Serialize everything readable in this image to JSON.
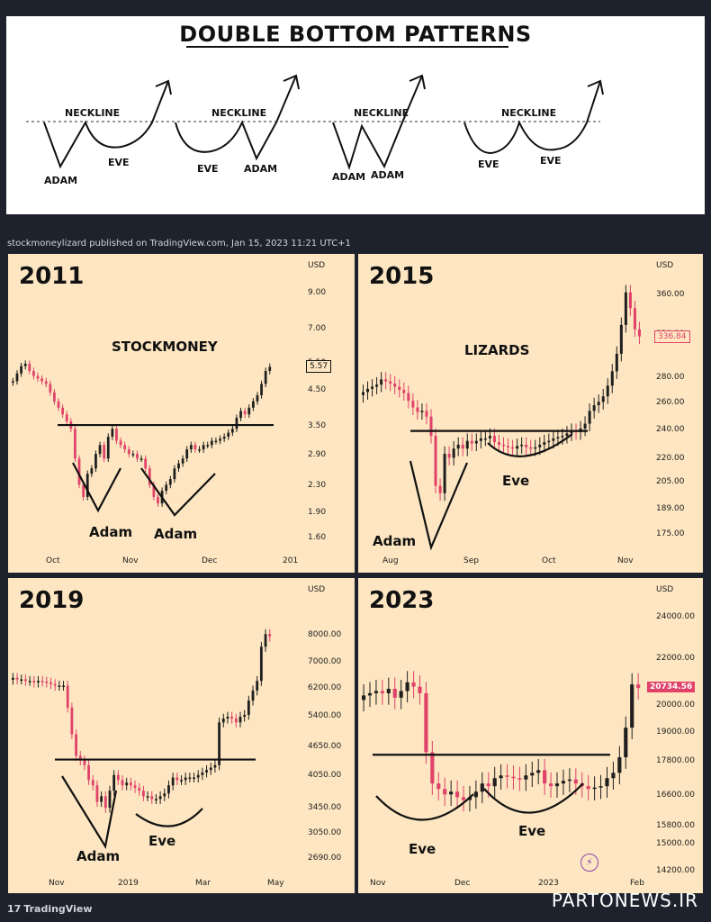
{
  "header": {
    "title": "DOUBLE BOTTOM PATTERNS",
    "patterns": [
      {
        "neckline": "NECKLINE",
        "left": "ADAM",
        "right": "EVE"
      },
      {
        "neckline": "NECKLINE",
        "left": "EVE",
        "right": "ADAM"
      },
      {
        "neckline": "NECKLINE",
        "left": "ADAM",
        "right": "ADAM"
      },
      {
        "neckline": "NECKLINE",
        "left": "EVE",
        "right": "EVE"
      }
    ]
  },
  "publish": {
    "text": "stockmoneylizard published on TradingView.com, Jan 15, 2023 11:21 UTC+1"
  },
  "footer": {
    "logo": "TradingView",
    "logo_mark": "17",
    "watermark": "PARTONEWS.IR"
  },
  "colors": {
    "up": "#1f1f1f",
    "down": "#e0426a",
    "panel": "#fde6c1",
    "background": "#1e222d"
  },
  "chart_data": [
    {
      "type": "candlestick",
      "year": "2011",
      "brand": "STOCKMONEY",
      "currency": "USD",
      "scale": "log",
      "y_ticks": [
        "9.00",
        "7.00",
        "5.50",
        "4.50",
        "3.50",
        "2.90",
        "2.30",
        "1.90",
        "1.60"
      ],
      "x_ticks": [
        "Oct",
        "Nov",
        "Dec",
        "201"
      ],
      "last_price": "5.57",
      "annotations": [
        "Adam",
        "Adam"
      ],
      "neckline": 3.6,
      "ylim": [
        1.4,
        11.5
      ],
      "closes": [
        5.0,
        5.3,
        5.6,
        5.7,
        5.4,
        5.2,
        5.1,
        5.0,
        4.9,
        4.6,
        4.3,
        4.1,
        3.9,
        3.7,
        3.5,
        2.8,
        2.3,
        2.1,
        2.5,
        2.6,
        2.9,
        3.1,
        2.8,
        3.3,
        3.5,
        3.2,
        3.1,
        3.0,
        2.9,
        2.9,
        2.8,
        2.8,
        2.6,
        2.3,
        2.1,
        2.0,
        2.2,
        2.3,
        2.4,
        2.6,
        2.7,
        2.8,
        3.0,
        3.1,
        3.0,
        3.0,
        3.1,
        3.1,
        3.2,
        3.2,
        3.25,
        3.3,
        3.4,
        3.5,
        3.8,
        4.0,
        3.9,
        4.1,
        4.3,
        4.5,
        4.9,
        5.4,
        5.57
      ]
    },
    {
      "type": "candlestick",
      "year": "2015",
      "brand": "LIZARDS",
      "currency": "USD",
      "scale": "log",
      "y_ticks": [
        "360.00",
        "320.00",
        "280.00",
        "260.00",
        "240.00",
        "220.00",
        "205.00",
        "189.00",
        "175.00"
      ],
      "x_ticks": [
        "Aug",
        "Sep",
        "Oct",
        "Nov"
      ],
      "last_price": "336.84",
      "annotations": [
        "Adam",
        "Eve"
      ],
      "neckline": 246,
      "ylim": [
        165,
        420
      ],
      "closes": [
        280,
        283,
        285,
        287,
        292,
        290,
        288,
        285,
        282,
        279,
        272,
        266,
        262,
        263,
        258,
        242,
        205,
        200,
        228,
        225,
        232,
        235,
        232,
        238,
        236,
        238,
        240,
        240,
        242,
        237,
        235,
        234,
        233,
        232,
        234,
        235,
        233,
        232,
        233,
        235,
        237,
        238,
        240,
        241,
        242,
        244,
        246,
        245,
        248,
        252,
        263,
        268,
        271,
        276,
        286,
        300,
        318,
        350,
        390,
        370,
        345,
        336.84
      ]
    },
    {
      "type": "candlestick",
      "year": "2019",
      "brand": "",
      "currency": "USD",
      "scale": "log",
      "y_ticks": [
        "8000.00",
        "7000.00",
        "6200.00",
        "5400.00",
        "4650.00",
        "4050.00",
        "3450.00",
        "3050.00",
        "2690.00"
      ],
      "x_ticks": [
        "Nov",
        "2019",
        "Mar",
        "May"
      ],
      "last_price": "",
      "annotations": [
        "Adam",
        "Eve"
      ],
      "neckline": 4220,
      "ylim": [
        2450,
        9800
      ],
      "closes": [
        6400,
        6350,
        6350,
        6300,
        6300,
        6250,
        6300,
        6280,
        6250,
        6200,
        6150,
        6150,
        6150,
        5500,
        4800,
        4300,
        4200,
        4100,
        3800,
        3700,
        3400,
        3500,
        3300,
        3600,
        3900,
        3800,
        3700,
        3750,
        3700,
        3650,
        3600,
        3500,
        3500,
        3450,
        3450,
        3500,
        3550,
        3700,
        3850,
        3800,
        3800,
        3850,
        3850,
        3850,
        3900,
        3950,
        4000,
        4050,
        4100,
        5100,
        5200,
        5250,
        5200,
        5100,
        5250,
        5300,
        5700,
        6000,
        6300,
        7500,
        8000,
        7900
      ]
    },
    {
      "type": "candlestick",
      "year": "2023",
      "brand": "",
      "currency": "USD",
      "scale": "log",
      "y_ticks": [
        "24000.00",
        "22000.00",
        "20000.00",
        "19000.00",
        "17800.00",
        "16600.00",
        "15800.00",
        "15000.00",
        "14200.00"
      ],
      "x_ticks": [
        "Nov",
        "Dec",
        "2023",
        "Feb"
      ],
      "last_price": "20734.56",
      "annotations": [
        "Eve",
        "Eve"
      ],
      "neckline": 17900,
      "ylim": [
        14000,
        25500
      ],
      "closes": [
        20400,
        20500,
        20600,
        20500,
        20700,
        20300,
        20600,
        21000,
        20800,
        20500,
        18000,
        16800,
        16600,
        16400,
        16500,
        16300,
        16200,
        16300,
        16500,
        16800,
        16700,
        17000,
        17100,
        17050,
        17000,
        16950,
        17100,
        17200,
        17300,
        16800,
        16700,
        16800,
        16900,
        16950,
        16800,
        16700,
        16600,
        16650,
        16700,
        17000,
        17200,
        17800,
        19000,
        20900,
        20734.56
      ]
    }
  ]
}
